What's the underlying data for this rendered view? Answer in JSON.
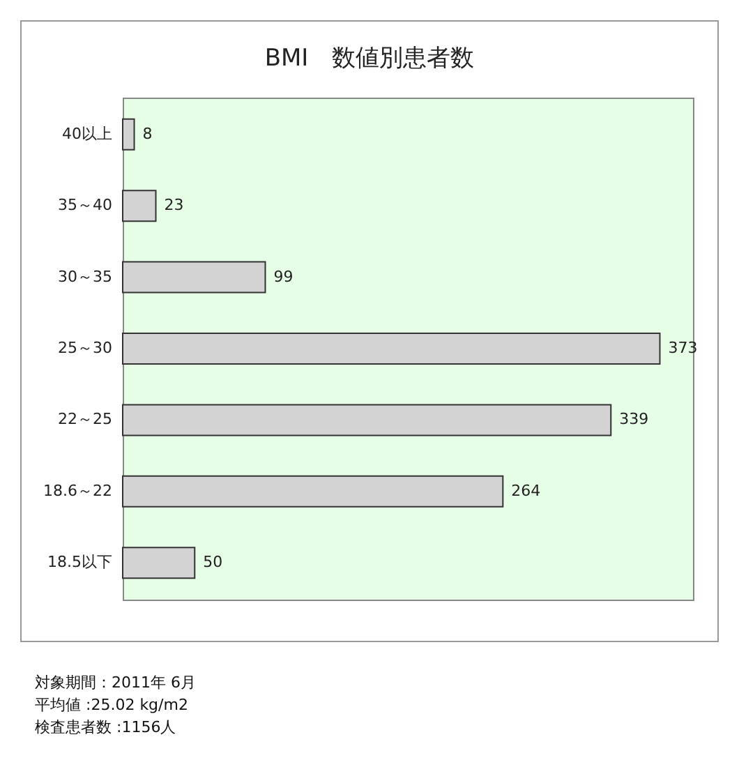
{
  "chart_data": {
    "type": "bar",
    "orientation": "horizontal",
    "title": "BMI　数値別患者数",
    "categories": [
      "40以上",
      "35～40",
      "30～35",
      "25～30",
      "22～25",
      "18.6～22",
      "18.5以下"
    ],
    "values": [
      8,
      23,
      99,
      373,
      339,
      264,
      50
    ],
    "color": "#d3d3d3",
    "xlim": [
      0,
      396
    ],
    "tick_labels": "y",
    "data_labels": true,
    "grid": false,
    "annotations": [
      "対象期間：2011年 6月",
      "平均値 :25.02 kg/m2",
      "検査患者数 :1156人"
    ]
  }
}
